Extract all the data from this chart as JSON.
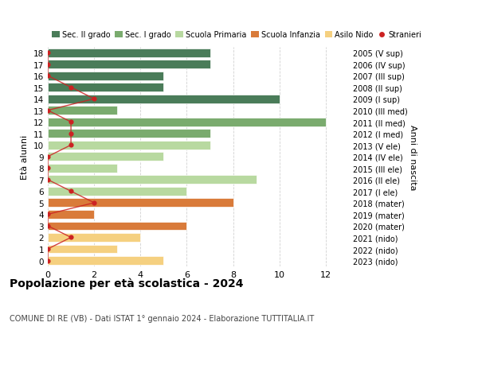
{
  "ages": [
    18,
    17,
    16,
    15,
    14,
    13,
    12,
    11,
    10,
    9,
    8,
    7,
    6,
    5,
    4,
    3,
    2,
    1,
    0
  ],
  "right_labels": [
    "2005 (V sup)",
    "2006 (IV sup)",
    "2007 (III sup)",
    "2008 (II sup)",
    "2009 (I sup)",
    "2010 (III med)",
    "2011 (II med)",
    "2012 (I med)",
    "2013 (V ele)",
    "2014 (IV ele)",
    "2015 (III ele)",
    "2016 (II ele)",
    "2017 (I ele)",
    "2018 (mater)",
    "2019 (mater)",
    "2020 (mater)",
    "2021 (nido)",
    "2022 (nido)",
    "2023 (nido)"
  ],
  "bar_values": [
    7,
    7,
    5,
    5,
    10,
    3,
    12,
    7,
    7,
    5,
    3,
    9,
    6,
    8,
    2,
    6,
    4,
    3,
    5
  ],
  "bar_colors": [
    "#4a7c59",
    "#4a7c59",
    "#4a7c59",
    "#4a7c59",
    "#4a7c59",
    "#7aab6e",
    "#7aab6e",
    "#7aab6e",
    "#b8d9a0",
    "#b8d9a0",
    "#b8d9a0",
    "#b8d9a0",
    "#b8d9a0",
    "#d97b3a",
    "#d97b3a",
    "#d97b3a",
    "#f5d080",
    "#f5d080",
    "#f5d080"
  ],
  "stranieri_values": [
    0,
    0,
    0,
    1,
    2,
    0,
    1,
    1,
    1,
    0,
    0,
    0,
    1,
    2,
    0,
    0,
    1,
    0,
    0
  ],
  "xlim": [
    0,
    13
  ],
  "ylim": [
    -0.5,
    18.5
  ],
  "title": "Popolazione per età scolastica - 2024",
  "subtitle": "COMUNE DI RE (VB) - Dati ISTAT 1° gennaio 2024 - Elaborazione TUTTITALIA.IT",
  "ylabel": "Età alunni",
  "right_ylabel": "Anni di nascita",
  "legend_labels": [
    "Sec. II grado",
    "Sec. I grado",
    "Scuola Primaria",
    "Scuola Infanzia",
    "Asilo Nido",
    "Stranieri"
  ],
  "legend_colors": [
    "#4a7c59",
    "#7aab6e",
    "#b8d9a0",
    "#d97b3a",
    "#f5d080",
    "#cc2222"
  ],
  "color_stranieri": "#cc2222",
  "bg_color": "#ffffff",
  "grid_color": "#cccccc"
}
